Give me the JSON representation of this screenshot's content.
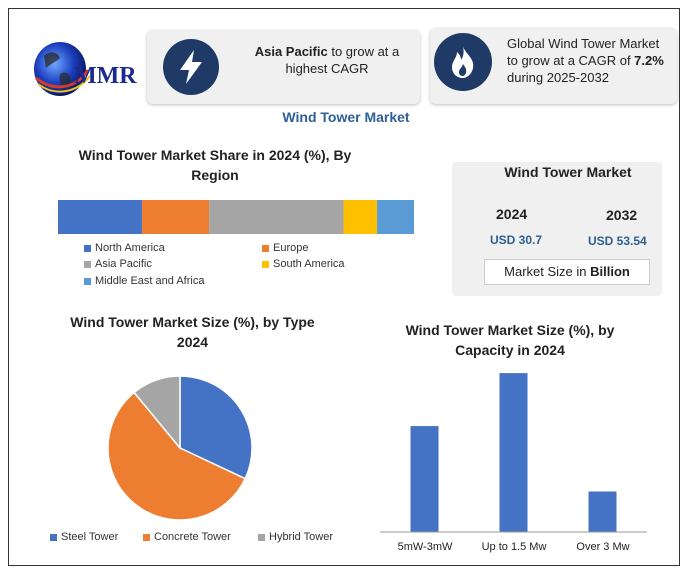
{
  "brand": {
    "logo_text": "MMR"
  },
  "top_cards": {
    "left": {
      "icon": "lightning-bolt-icon",
      "bold": "Asia Pacific",
      "text_line1_rest": " to grow at a",
      "text_line2": "highest CAGR"
    },
    "right": {
      "icon": "flame-icon",
      "line1": "Global Wind Tower Market",
      "line2_pre": "to grow at a CAGR of ",
      "line2_bold": "7.2%",
      "line3": "during 2025-2032"
    }
  },
  "main_title": "Wind Tower Market",
  "region_panel": {
    "title_line1": "Wind Tower Market Share in 2024 (%), By",
    "title_line2": "Region"
  },
  "stats": {
    "title": "Wind Tower Market",
    "year1": "2024",
    "value1": "USD 30.7",
    "year2": "2032",
    "value2": "USD 53.54",
    "unit_pre": "Market Size in ",
    "unit_bold": "Billion"
  },
  "type_panel": {
    "title_line1": "Wind Tower Market Size (%), by Type",
    "title_line2": "2024"
  },
  "capacity_panel": {
    "title_line1": "Wind Tower Market  Size (%), by",
    "title_line2": "Capacity in 2024"
  },
  "colors": {
    "blue": "#4472c4",
    "orange": "#ed7d31",
    "gray": "#a5a5a5",
    "yellow": "#ffc000",
    "lightblue": "#5b9bd5",
    "navy": "#1f3a66",
    "title_blue": "#2e5f95"
  },
  "chart_data": [
    {
      "type": "bar",
      "orientation": "horizontal-stacked",
      "title": "Wind Tower Market Share in 2024 (%), By Region",
      "series": [
        {
          "name": "North America",
          "value": 25,
          "color": "#4472c4"
        },
        {
          "name": "Europe",
          "value": 20,
          "color": "#ed7d31"
        },
        {
          "name": "Asia Pacific",
          "value": 40,
          "color": "#a5a5a5"
        },
        {
          "name": "South America",
          "value": 10,
          "color": "#ffc000"
        },
        {
          "name": "Middle East and Africa",
          "value": 11,
          "color": "#5b9bd5"
        }
      ]
    },
    {
      "type": "pie",
      "title": "Wind Tower Market Size (%), by Type 2024",
      "slices": [
        {
          "name": "Steel Tower",
          "value": 32,
          "color": "#4472c4"
        },
        {
          "name": "Concrete Tower",
          "value": 57,
          "color": "#ed7d31"
        },
        {
          "name": "Hybrid Tower",
          "value": 11,
          "color": "#a5a5a5"
        }
      ]
    },
    {
      "type": "bar",
      "title": "Wind Tower Market  Size (%), by Capacity in 2024",
      "categories": [
        "5mW-3mW",
        "Up to 1.5 Mw",
        "Over 3 Mw"
      ],
      "values": [
        34,
        51,
        13
      ],
      "ylim": [
        0,
        52
      ],
      "color": "#4472c4"
    }
  ]
}
